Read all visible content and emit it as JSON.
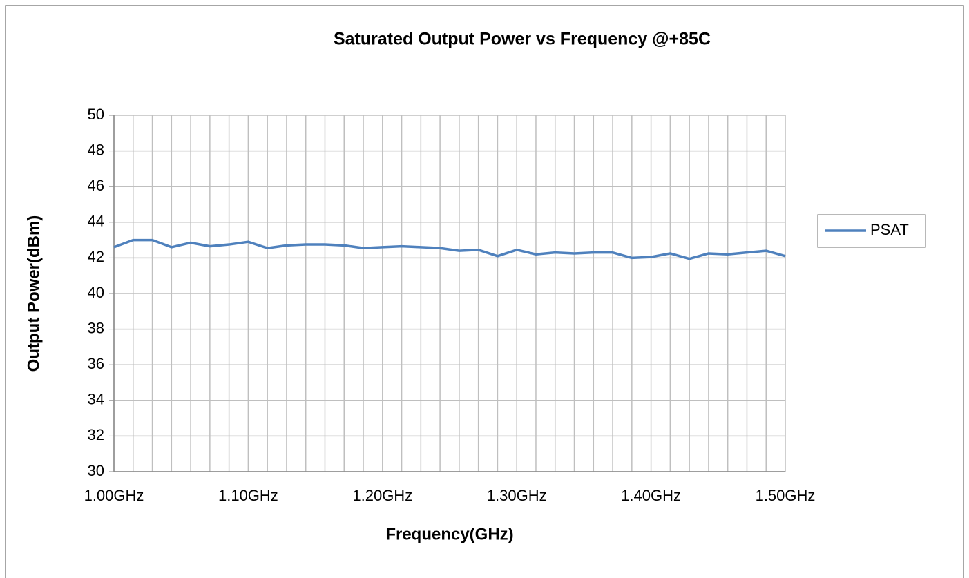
{
  "chart_data": {
    "type": "line",
    "title": "Saturated Output Power vs Frequency @+85C",
    "x_label": "Frequency(GHz)",
    "y_label": "Output Power(dBm)",
    "categories": [
      "1.00GHz",
      null,
      null,
      null,
      null,
      null,
      null,
      "1.10GHz",
      null,
      null,
      null,
      null,
      null,
      null,
      "1.20GHz",
      null,
      null,
      null,
      null,
      null,
      null,
      "1.30GHz",
      null,
      null,
      null,
      null,
      null,
      null,
      "1.40GHz",
      null,
      null,
      null,
      null,
      null,
      null,
      "1.50GHz"
    ],
    "series": [
      {
        "name": "PSAT",
        "color": "#4f81bd",
        "values": [
          42.6,
          43.0,
          43.0,
          42.6,
          42.85,
          42.65,
          42.75,
          42.9,
          42.55,
          42.7,
          42.75,
          42.75,
          42.7,
          42.55,
          42.6,
          42.65,
          42.6,
          42.55,
          42.4,
          42.45,
          42.1,
          42.45,
          42.2,
          42.3,
          42.25,
          42.3,
          42.3,
          42.0,
          42.05,
          42.25,
          41.95,
          42.25,
          42.2,
          42.3,
          42.4,
          42.1
        ]
      }
    ],
    "ylim": [
      30,
      50
    ],
    "yticks": [
      30,
      32,
      34,
      36,
      38,
      40,
      42,
      44,
      46,
      48,
      50
    ],
    "grid": true,
    "legend": "right"
  }
}
